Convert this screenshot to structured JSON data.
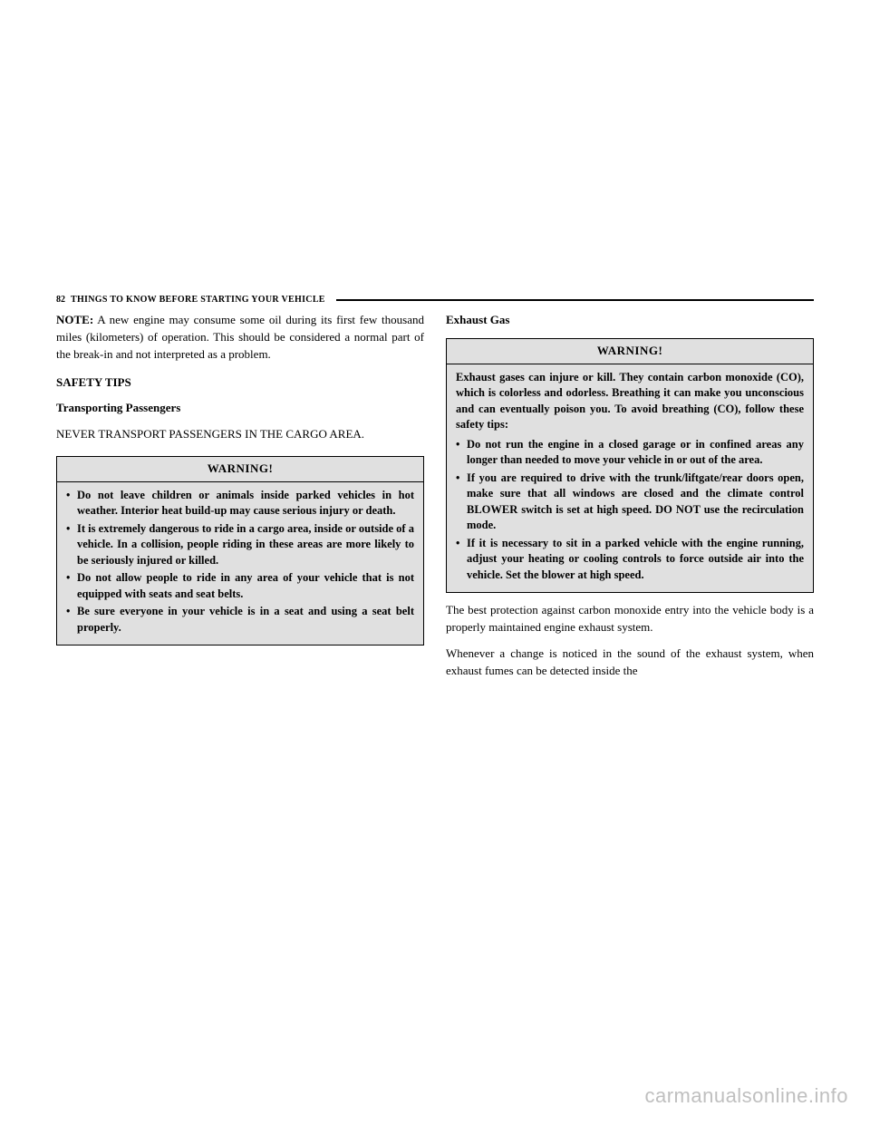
{
  "header": {
    "page_number": "82",
    "title": "THINGS TO KNOW BEFORE STARTING YOUR VEHICLE"
  },
  "left": {
    "note_label": "NOTE:",
    "note_text": " A new engine may consume some oil during its first few thousand miles (kilometers) of operation. This should be considered a normal part of the break-in and not interpreted as a problem.",
    "safety_tips": "SAFETY TIPS",
    "transporting": "Transporting Passengers",
    "never_line": "NEVER TRANSPORT PASSENGERS IN THE CARGO AREA.",
    "warning_label": "WARNING!",
    "warnings": [
      "Do not leave children or animals inside parked vehicles in hot weather. Interior heat build-up may cause serious injury or death.",
      "It is extremely dangerous to ride in a cargo area, inside or outside of a vehicle. In a collision, people riding in these areas are more likely to be seriously injured or killed.",
      "Do not allow people to ride in any area of your vehicle that is not equipped with seats and seat belts.",
      "Be sure everyone in your vehicle is in a seat and using a seat belt properly."
    ]
  },
  "right": {
    "exhaust_gas": "Exhaust Gas",
    "warning_label": "WARNING!",
    "warning_intro": "Exhaust gases can injure or kill. They contain carbon monoxide (CO), which is colorless and odorless. Breathing it can make you unconscious and can eventually poison you. To avoid breathing (CO), follow these safety tips:",
    "warnings": [
      "Do not run the engine in a closed garage or in confined areas any longer than needed to move your vehicle in or out of the area.",
      "If you are required to drive with the trunk/liftgate/rear doors open, make sure that all windows are closed and the climate control BLOWER switch is set at high speed. DO NOT use the recirculation mode.",
      "If it is necessary to sit in a parked vehicle with the engine running, adjust your heating or cooling controls to force outside air into the vehicle. Set the blower at high speed."
    ],
    "after1": "The best protection against carbon monoxide entry into the vehicle body is a properly maintained engine exhaust system.",
    "after2": "Whenever a change is noticed in the sound of the exhaust system, when exhaust fumes can be detected inside the"
  },
  "watermark": "carmanualsonline.info",
  "colors": {
    "background": "#ffffff",
    "text": "#000000",
    "warning_bg": "#e0e0e0",
    "watermark": "#bfbfbf"
  }
}
